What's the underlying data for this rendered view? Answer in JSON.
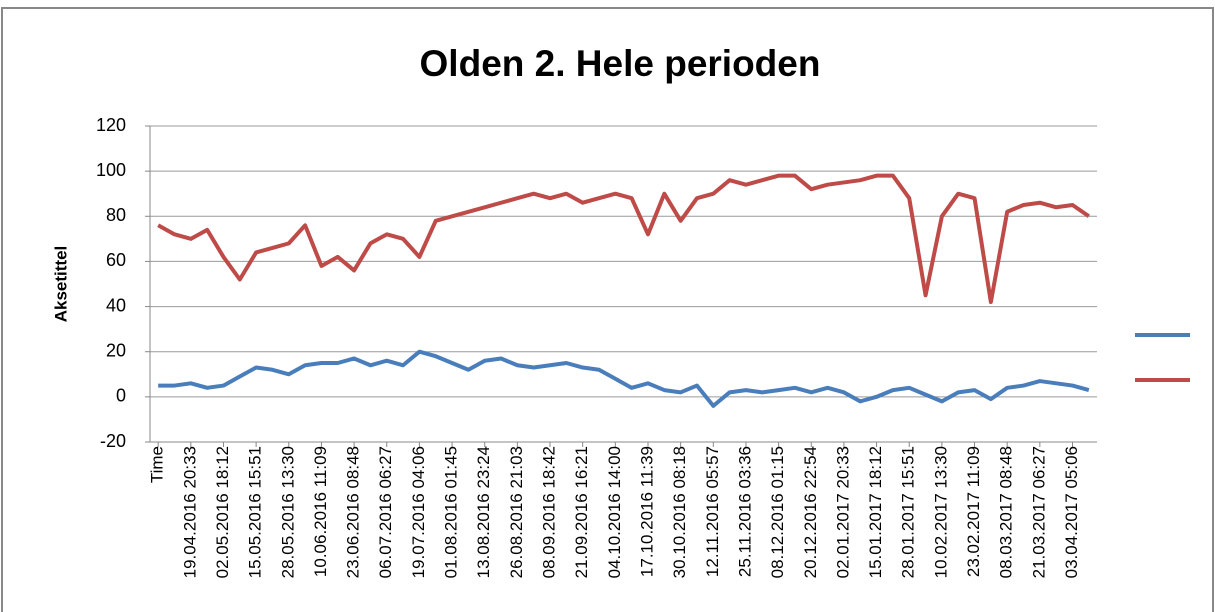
{
  "chart_data": {
    "type": "line",
    "title": "Olden 2. Hele perioden",
    "y_label": "Aksetittel",
    "categories": [
      "Time",
      null,
      "19.04.2016 20:33",
      null,
      "02.05.2016 18:12",
      null,
      "15.05.2016 15:51",
      null,
      "28.05.2016 13:30",
      null,
      "10.06.2016 11:09",
      null,
      "23.06.2016 08:48",
      null,
      "06.07.2016 06:27",
      null,
      "19.07.2016 04:06",
      null,
      "01.08.2016 01:45",
      null,
      "13.08.2016 23:24",
      null,
      "26.08.2016 21:03",
      null,
      "08.09.2016 18:42",
      null,
      "21.09.2016 16:21",
      null,
      "04.10.2016 14:00",
      null,
      "17.10.2016 11:39",
      null,
      "30.10.2016 08:18",
      null,
      "12.11.2016 05:57",
      null,
      "25.11.2016 03:36",
      null,
      "08.12.2016 01:15",
      null,
      "20.12.2016 22:54",
      null,
      "02.01.2017 20:33",
      null,
      "15.01.2017 18:12",
      null,
      "28.01.2017 15:51",
      null,
      "10.02.2017 13:30",
      null,
      "23.02.2017 11:09",
      null,
      "08.03.2017 08:48",
      null,
      "21.03.2017 06:27",
      null,
      "03.04.2017 05:06",
      null
    ],
    "series": [
      {
        "color": "#4a7ebb",
        "values": [
          5,
          5,
          6,
          4,
          5,
          9,
          13,
          12,
          10,
          14,
          15,
          15,
          17,
          14,
          16,
          14,
          20,
          18,
          15,
          12,
          16,
          17,
          14,
          13,
          14,
          15,
          13,
          12,
          8,
          4,
          6,
          3,
          2,
          5,
          -4,
          2,
          3,
          2,
          3,
          4,
          2,
          4,
          2,
          -2,
          0,
          3,
          4,
          1,
          -2,
          2,
          3,
          -1,
          4,
          5,
          7,
          6,
          5,
          3
        ]
      },
      {
        "color": "#be4b48",
        "values": [
          76,
          72,
          70,
          74,
          62,
          52,
          64,
          66,
          68,
          76,
          58,
          62,
          56,
          68,
          72,
          70,
          62,
          78,
          80,
          82,
          84,
          86,
          88,
          90,
          88,
          90,
          86,
          88,
          90,
          88,
          72,
          90,
          78,
          88,
          90,
          96,
          94,
          96,
          98,
          98,
          92,
          94,
          95,
          96,
          98,
          98,
          88,
          45,
          80,
          90,
          88,
          42,
          82,
          85,
          86,
          84,
          85,
          80
        ]
      }
    ],
    "ylim": [
      -20,
      120
    ],
    "yticks": [
      -20,
      0,
      20,
      40,
      60,
      80,
      100,
      120
    ],
    "grid": true
  }
}
